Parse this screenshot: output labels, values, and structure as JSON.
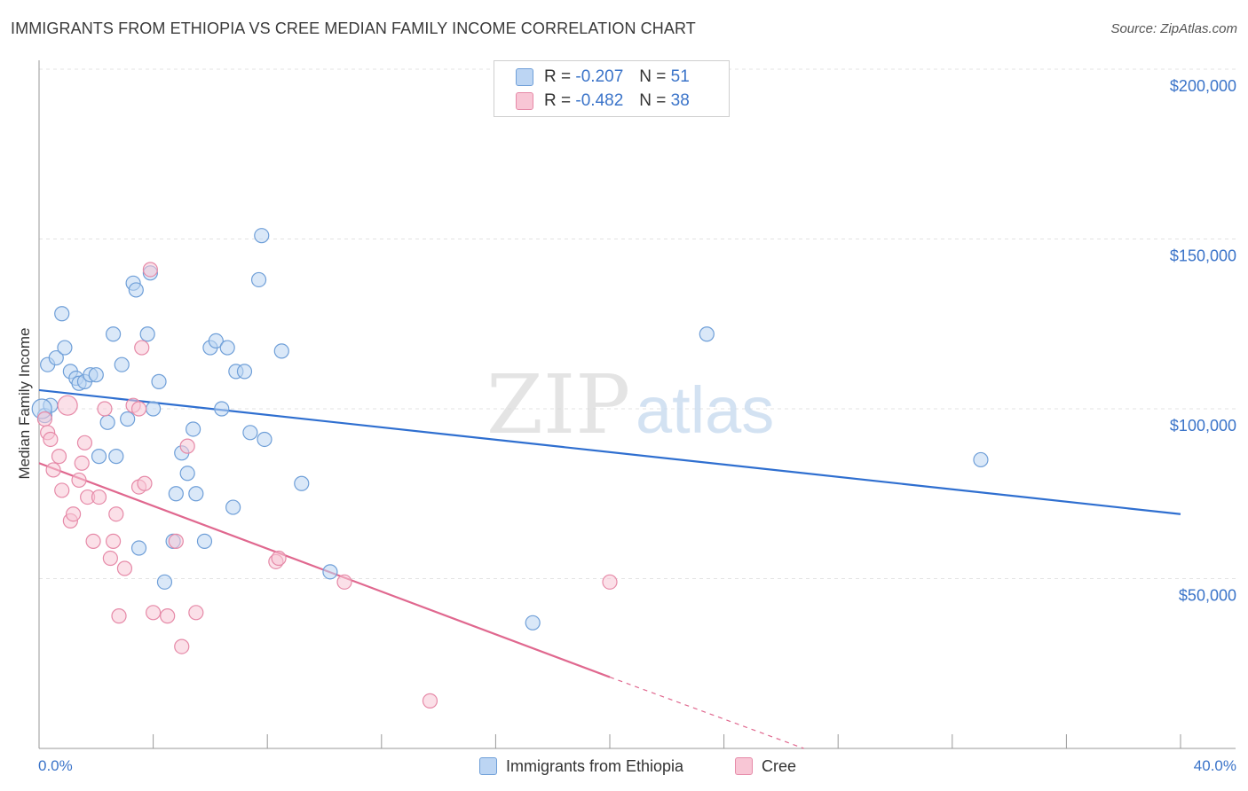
{
  "title": "IMMIGRANTS FROM ETHIOPIA VS CREE MEDIAN FAMILY INCOME CORRELATION CHART",
  "source": "Source: ZipAtlas.com",
  "watermark": {
    "zip": "ZIP",
    "atlas": "atlas"
  },
  "legend": {
    "rows": [
      {
        "r_label": "R =",
        "r_value": "-0.207",
        "n_label": "N =",
        "n_value": "51",
        "color": "#aecbf0",
        "border": "#6f9fd8"
      },
      {
        "r_label": "R =",
        "r_value": "-0.482",
        "n_label": "N =",
        "n_value": "38",
        "color": "#f8c3d3",
        "border": "#e68aa8"
      }
    ]
  },
  "bottom_legend": {
    "series1": "Immigrants from Ethiopia",
    "series2": "Cree"
  },
  "chart_data": {
    "type": "scatter",
    "title": "IMMIGRANTS FROM ETHIOPIA VS CREE MEDIAN FAMILY INCOME CORRELATION CHART",
    "xlabel": "",
    "ylabel": "Median Family Income",
    "xlim": [
      0,
      40
    ],
    "ylim": [
      0,
      200000
    ],
    "x_tick_labels": {
      "left": "0.0%",
      "right": "40.0%"
    },
    "y_ticks": [
      {
        "value": 200000,
        "label": "$200,000"
      },
      {
        "value": 150000,
        "label": "$150,000"
      },
      {
        "value": 100000,
        "label": "$100,000"
      },
      {
        "value": 50000,
        "label": "$50,000"
      }
    ],
    "series": [
      {
        "name": "Immigrants from Ethiopia",
        "color": "#6f9fd8",
        "fill": "#bcd5f3",
        "trend": {
          "x0": 0,
          "y0": 105500,
          "x1": 40,
          "y1": 69000,
          "color": "#2f6fd0"
        },
        "points": [
          [
            0.2,
            98000
          ],
          [
            0.3,
            113000
          ],
          [
            0.4,
            101000
          ],
          [
            0.6,
            115000
          ],
          [
            0.8,
            128000
          ],
          [
            0.9,
            118000
          ],
          [
            1.1,
            111000
          ],
          [
            1.3,
            109000
          ],
          [
            1.4,
            107500
          ],
          [
            1.6,
            108000
          ],
          [
            1.8,
            110000
          ],
          [
            2.0,
            110000
          ],
          [
            2.1,
            86000
          ],
          [
            2.4,
            96000
          ],
          [
            2.6,
            122000
          ],
          [
            2.7,
            86000
          ],
          [
            2.9,
            113000
          ],
          [
            3.1,
            97000
          ],
          [
            3.3,
            137000
          ],
          [
            3.4,
            135000
          ],
          [
            3.5,
            59000
          ],
          [
            3.8,
            122000
          ],
          [
            3.9,
            140000
          ],
          [
            4.0,
            100000
          ],
          [
            4.2,
            108000
          ],
          [
            4.4,
            49000
          ],
          [
            4.7,
            61000
          ],
          [
            4.8,
            75000
          ],
          [
            5.0,
            87000
          ],
          [
            5.2,
            81000
          ],
          [
            5.4,
            94000
          ],
          [
            5.5,
            75000
          ],
          [
            5.8,
            61000
          ],
          [
            6.0,
            118000
          ],
          [
            6.2,
            120000
          ],
          [
            6.4,
            100000
          ],
          [
            6.6,
            118000
          ],
          [
            6.8,
            71000
          ],
          [
            6.9,
            111000
          ],
          [
            7.2,
            111000
          ],
          [
            7.4,
            93000
          ],
          [
            7.7,
            138000
          ],
          [
            7.8,
            151000
          ],
          [
            7.9,
            91000
          ],
          [
            8.5,
            117000
          ],
          [
            9.2,
            78000
          ],
          [
            10.2,
            52000
          ],
          [
            17.3,
            37000
          ],
          [
            23.4,
            122000
          ],
          [
            33.0,
            85000
          ],
          [
            0.1,
            100000
          ]
        ]
      },
      {
        "name": "Cree",
        "color": "#e68aa8",
        "fill": "#f8c6d5",
        "trend": {
          "x0": 0,
          "y0": 84000,
          "x1": 20,
          "y1": 21000,
          "color": "#e0688f"
        },
        "trend_dashed": {
          "x0": 20,
          "y0": 21000,
          "x1": 26.8,
          "y1": 0
        },
        "points": [
          [
            0.2,
            97000
          ],
          [
            0.3,
            93000
          ],
          [
            0.4,
            91000
          ],
          [
            0.5,
            82000
          ],
          [
            0.7,
            86000
          ],
          [
            0.8,
            76000
          ],
          [
            1.1,
            67000
          ],
          [
            1.2,
            69000
          ],
          [
            1.4,
            79000
          ],
          [
            1.5,
            84000
          ],
          [
            1.6,
            90000
          ],
          [
            1.7,
            74000
          ],
          [
            1.9,
            61000
          ],
          [
            2.1,
            74000
          ],
          [
            2.3,
            100000
          ],
          [
            2.5,
            56000
          ],
          [
            2.6,
            61000
          ],
          [
            2.7,
            69000
          ],
          [
            2.8,
            39000
          ],
          [
            3.0,
            53000
          ],
          [
            3.3,
            101000
          ],
          [
            3.5,
            100000
          ],
          [
            3.5,
            77000
          ],
          [
            3.6,
            118000
          ],
          [
            3.7,
            78000
          ],
          [
            3.9,
            141000
          ],
          [
            4.0,
            40000
          ],
          [
            4.5,
            39000
          ],
          [
            4.8,
            61000
          ],
          [
            5.0,
            30000
          ],
          [
            5.2,
            89000
          ],
          [
            5.5,
            40000
          ],
          [
            8.3,
            55000
          ],
          [
            8.4,
            56000
          ],
          [
            10.7,
            49000
          ],
          [
            13.7,
            14000
          ],
          [
            20.0,
            49000
          ],
          [
            1.0,
            101000
          ]
        ]
      }
    ]
  }
}
